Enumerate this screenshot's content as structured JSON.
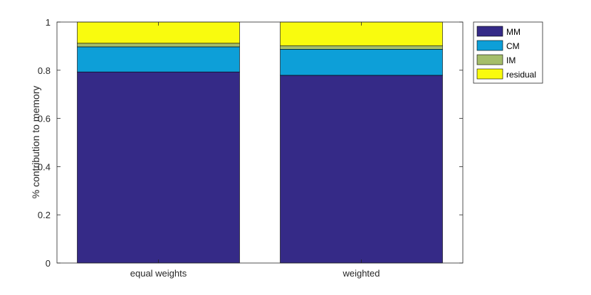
{
  "chart_data": {
    "type": "bar",
    "stacked": true,
    "categories": [
      "equal weights",
      "weighted"
    ],
    "series": [
      {
        "name": "MM",
        "values": [
          0.793,
          0.779
        ],
        "color": "#352a87"
      },
      {
        "name": "CM",
        "values": [
          0.104,
          0.108
        ],
        "color": "#0d9fd8"
      },
      {
        "name": "IM",
        "values": [
          0.015,
          0.015
        ],
        "color": "#a5be6a"
      },
      {
        "name": "residual",
        "values": [
          0.088,
          0.098
        ],
        "color": "#f9fb0e"
      }
    ],
    "title": "",
    "xlabel": "",
    "ylabel": "% contribution to memory",
    "ylim": [
      0,
      1
    ],
    "yticks": [
      0,
      0.2,
      0.4,
      0.6,
      0.8,
      1
    ],
    "ytick_labels": [
      "0",
      "0.2",
      "0.4",
      "0.6",
      "0.8",
      "1"
    ],
    "grid": false,
    "legend_position": "outside-top-right"
  }
}
